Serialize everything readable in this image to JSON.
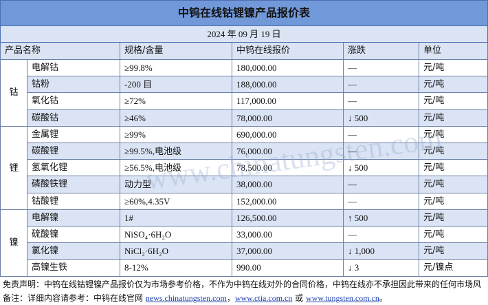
{
  "header": {
    "title": "中钨在线钴锂镍产品报价表",
    "date": "2024 年 09 月 19 日"
  },
  "table": {
    "columns": [
      "产品名称",
      "规格/含量",
      "中钨在线报价",
      "涨跌",
      "单位"
    ],
    "groups": [
      {
        "label": "钴",
        "rows": [
          [
            "电解钴",
            "≥99.8%",
            "180,000.00",
            "—",
            "元/吨"
          ],
          [
            "钴粉",
            "-200 目",
            "188,000.00",
            "—",
            "元/吨"
          ],
          [
            "氧化钴",
            "≥72%",
            "117,000.00",
            "—",
            "元/吨"
          ],
          [
            "碳酸钴",
            "≥46%",
            "78,000.00",
            "↓ 500",
            "元/吨"
          ]
        ]
      },
      {
        "label": "锂",
        "rows": [
          [
            "金属锂",
            "≥99%",
            "690,000.00",
            "—",
            "元/吨"
          ],
          [
            "碳酸锂",
            "≥99.5%,电池级",
            "76,000.00",
            "—",
            "元/吨"
          ],
          [
            "氢氧化锂",
            "≥56.5%,电池级",
            "78,500.00",
            "↓ 500",
            "元/吨"
          ],
          [
            "磷酸铁锂",
            "动力型",
            "38,000.00",
            "—",
            "元/吨"
          ],
          [
            "钴酸锂",
            "≥60%,4.35V",
            "152,000.00",
            "—",
            "元/吨"
          ]
        ]
      },
      {
        "label": "镍",
        "rows": [
          [
            "电解镍",
            "1#",
            "126,500.00",
            "↑ 500",
            "元/吨"
          ],
          [
            "硫酸镍",
            "NiSO₄·6H₂O",
            "33,000.00",
            "—",
            "元/吨"
          ],
          [
            "氯化镍",
            "NiCl₂·6H₂O",
            "37,000.00",
            "↓ 1,000",
            "元/吨"
          ],
          [
            "高镍生铁",
            "8-12%",
            "990.00",
            "↓ 3",
            "元/镍点"
          ]
        ]
      }
    ]
  },
  "watermark": "www.chinatungsten.com",
  "footer": {
    "disclaimer": "免责声明：中钨在线钴锂镍产品报价仅为市场参考价格，不作为中钨在线对外的合同价格，中钨在线亦不承担因此带来的任何市场风",
    "note": [
      {
        "text": "备注：详细内容请参考：中钨在线官网 "
      },
      {
        "text": "news.chinatungsten.com",
        "link": true
      },
      {
        "text": "，"
      },
      {
        "text": "www.ctia.com.cn",
        "link": true
      },
      {
        "text": " 或 "
      },
      {
        "text": "www.tungsten.com.cn",
        "link": true
      },
      {
        "text": "。"
      }
    ]
  }
}
